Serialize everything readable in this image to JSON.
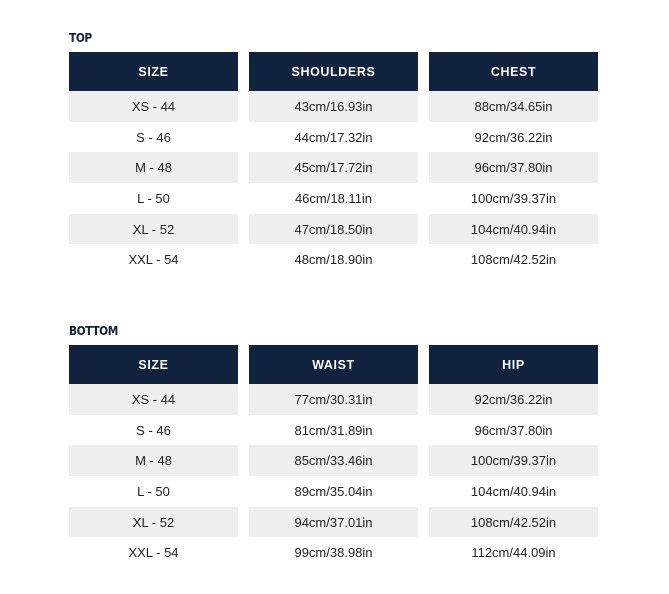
{
  "top": {
    "title": "TOP",
    "columns": [
      {
        "header": "SIZE",
        "values": [
          "XS - 44",
          "S - 46",
          "M - 48",
          "L - 50",
          "XL - 52",
          "XXL - 54"
        ]
      },
      {
        "header": "SHOULDERS",
        "values": [
          "43cm/16.93in",
          "44cm/17.32in",
          "45cm/17.72in",
          "46cm/18.11in",
          "47cm/18.50in",
          "48cm/18.90in"
        ]
      },
      {
        "header": "CHEST",
        "values": [
          "88cm/34.65in",
          "92cm/36.22in",
          "96cm/37.80in",
          "100cm/39.37in",
          "104cm/40.94in",
          "108cm/42.52in"
        ]
      }
    ]
  },
  "bottom": {
    "title": "BOTTOM",
    "columns": [
      {
        "header": "SIZE",
        "values": [
          "XS - 44",
          "S - 46",
          "M - 48",
          "L - 50",
          "XL - 52",
          "XXL - 54"
        ]
      },
      {
        "header": "WAIST",
        "values": [
          "77cm/30.31in",
          "81cm/31.89in",
          "85cm/33.46in",
          "89cm/35.04in",
          "94cm/37.01in",
          "99cm/38.98in"
        ]
      },
      {
        "header": "HIP",
        "values": [
          "92cm/36.22in",
          "96cm/37.80in",
          "100cm/39.37in",
          "104cm/40.94in",
          "108cm/42.52in",
          "112cm/44.09in"
        ]
      }
    ]
  },
  "colors": {
    "header_bg": "#10223d",
    "stripe": "#efefef"
  }
}
